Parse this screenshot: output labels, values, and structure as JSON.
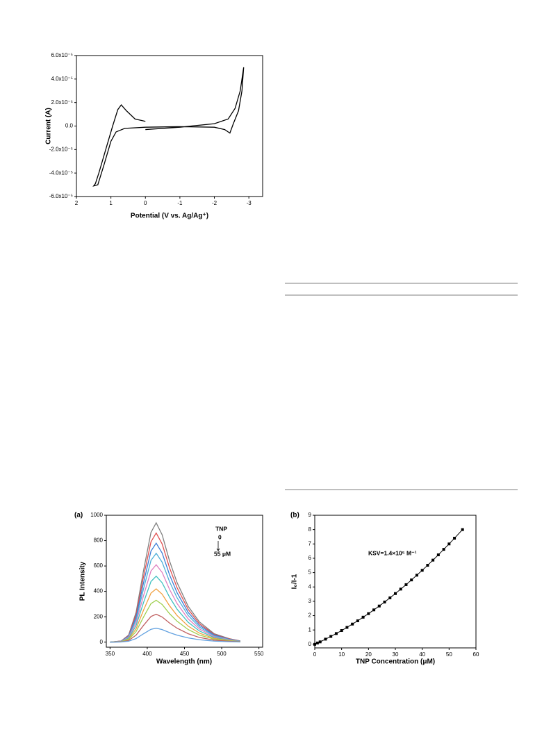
{
  "chart_data": [
    {
      "type": "line",
      "xlabel": "Potential (V vs. Ag/Ag⁺)",
      "ylabel": "Current (A)",
      "xlim": [
        2,
        -3.4
      ],
      "ylim": [
        -6e-05,
        6e-05
      ],
      "xticks": [
        2,
        1,
        0,
        -1,
        -2,
        -3
      ],
      "yticks": [
        {
          "value": -6e-05,
          "label": "-6.0x10⁻⁵"
        },
        {
          "value": -4e-05,
          "label": "-4.0x10⁻⁵"
        },
        {
          "value": -2e-05,
          "label": "-2.0x10⁻⁵"
        },
        {
          "value": 0,
          "label": "0.0"
        },
        {
          "value": 2e-05,
          "label": "2.0x10⁻⁵"
        },
        {
          "value": 4e-05,
          "label": "4.0x10⁻⁵"
        },
        {
          "value": 6e-05,
          "label": "6.0x10⁻⁵"
        }
      ],
      "x": [
        0,
        0.3,
        0.55,
        0.7,
        0.8,
        0.95,
        1.15,
        1.35,
        1.45,
        1.5,
        1.38,
        1.2,
        1.0,
        0.85,
        0.6,
        0,
        null,
        0,
        -1,
        -2,
        -2.4,
        -2.6,
        -2.75,
        -2.85,
        -2.8,
        -2.7,
        -2.55,
        -2.45,
        -2.3,
        -2,
        -1,
        0
      ],
      "series": [
        {
          "color": "#000000",
          "values": [
            4e-06,
            6e-06,
            1.3e-05,
            1.8e-05,
            1.4e-05,
            0,
            -2e-05,
            -4e-05,
            -4.9e-05,
            -5.1e-05,
            -5e-05,
            -3.3e-05,
            -1.3e-05,
            -5e-06,
            -2e-06,
            -1e-06,
            null,
            -3e-06,
            -1e-06,
            2e-06,
            6e-06,
            1.5e-05,
            3e-05,
            5e-05,
            3e-05,
            1.3e-05,
            2e-06,
            -6e-06,
            -3e-06,
            -1e-06,
            -5e-07,
            -1e-06
          ]
        }
      ]
    },
    {
      "type": "line",
      "panel": "(a)",
      "xlabel": "Wavelength (nm)",
      "ylabel": "PL Intensity",
      "xlim": [
        345,
        555
      ],
      "ylim": [
        -40,
        1000
      ],
      "xticks": [
        350,
        400,
        450,
        500,
        550
      ],
      "yticks": [
        0,
        200,
        400,
        600,
        800,
        1000
      ],
      "annotations": [
        "TNP",
        "0",
        "55 μM"
      ],
      "x": [
        350,
        365,
        375,
        385,
        395,
        405,
        412,
        420,
        430,
        440,
        455,
        470,
        490,
        510,
        525
      ],
      "series": [
        {
          "color": "#808080",
          "values": [
            0,
            9,
            56,
            235,
            564,
            865,
            940,
            846,
            639,
            470,
            282,
            160,
            66,
            28,
            9
          ]
        },
        {
          "color": "#e05050",
          "values": [
            0,
            9,
            52,
            215,
            516,
            791,
            860,
            774,
            585,
            430,
            258,
            146,
            60,
            26,
            9
          ]
        },
        {
          "color": "#3d7fd6",
          "values": [
            0,
            8,
            47,
            195,
            468,
            718,
            780,
            702,
            530,
            390,
            234,
            133,
            55,
            23,
            8
          ]
        },
        {
          "color": "#50b0d8",
          "values": [
            0,
            7,
            42,
            175,
            420,
            644,
            700,
            630,
            476,
            350,
            210,
            119,
            49,
            21,
            7
          ]
        },
        {
          "color": "#e080c0",
          "values": [
            0,
            6,
            37,
            153,
            366,
            561,
            610,
            549,
            415,
            305,
            183,
            104,
            43,
            18,
            6
          ]
        },
        {
          "color": "#40c0c0",
          "values": [
            0,
            5,
            31,
            130,
            312,
            478,
            520,
            468,
            354,
            260,
            156,
            88,
            36,
            16,
            5
          ]
        },
        {
          "color": "#f0a040",
          "values": [
            0,
            4,
            25,
            105,
            252,
            386,
            420,
            378,
            286,
            210,
            126,
            71,
            29,
            13,
            4
          ]
        },
        {
          "color": "#a0d050",
          "values": [
            0,
            3,
            20,
            83,
            198,
            304,
            330,
            297,
            224,
            165,
            99,
            56,
            23,
            10,
            3
          ]
        },
        {
          "color": "#c06060",
          "values": [
            0,
            2,
            13,
            55,
            132,
            202,
            220,
            198,
            150,
            110,
            66,
            37,
            15,
            7,
            2
          ]
        },
        {
          "color": "#60a0e0",
          "values": [
            0,
            1,
            7,
            28,
            66,
            101,
            110,
            99,
            75,
            55,
            33,
            19,
            8,
            3,
            1
          ]
        }
      ]
    },
    {
      "type": "line",
      "markers": "square",
      "panel": "(b)",
      "xlabel": "TNP Concentration (μM)",
      "ylabel": "I₀/I-1",
      "xlim": [
        0,
        60
      ],
      "ylim": [
        -0.25,
        9
      ],
      "xticks": [
        0,
        10,
        20,
        30,
        40,
        50,
        60
      ],
      "yticks": [
        0,
        1,
        2,
        3,
        4,
        5,
        6,
        7,
        8,
        9
      ],
      "annotations": [
        "KSV=1.4×10⁵ M⁻¹"
      ],
      "x": [
        0,
        1,
        2,
        4,
        6,
        8,
        10,
        12,
        14,
        16,
        18,
        20,
        22,
        24,
        26,
        28,
        30,
        32,
        34,
        36,
        38,
        40,
        42,
        44,
        46,
        48,
        50,
        52,
        55
      ],
      "series": [
        {
          "color": "#000000",
          "values": [
            0,
            0.09,
            0.17,
            0.36,
            0.55,
            0.75,
            0.96,
            1.18,
            1.41,
            1.64,
            1.89,
            2.14,
            2.4,
            2.67,
            2.95,
            3.24,
            3.54,
            3.85,
            4.16,
            4.49,
            4.82,
            5.16,
            5.51,
            5.87,
            6.24,
            6.62,
            7.0,
            7.4,
            8.0
          ]
        }
      ]
    }
  ]
}
